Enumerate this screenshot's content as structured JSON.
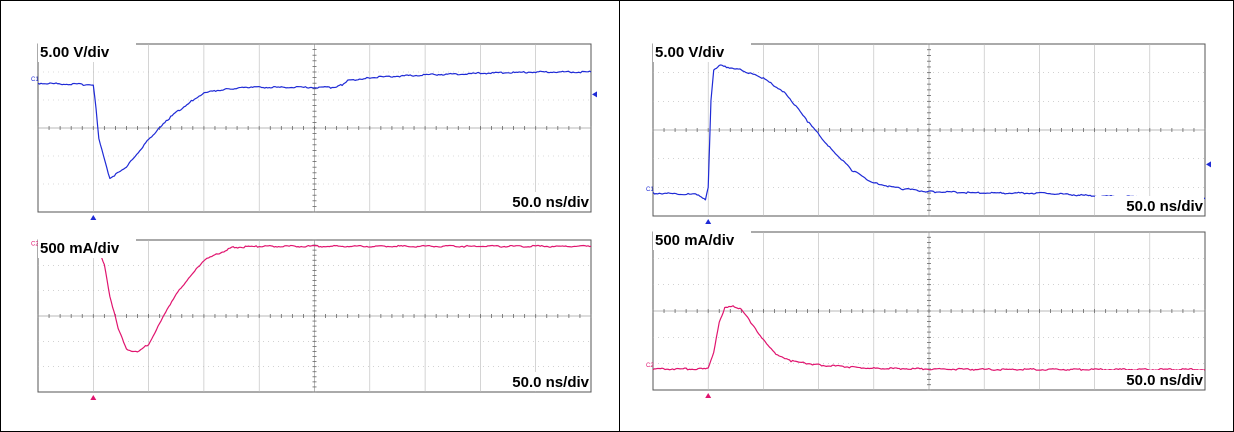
{
  "colors": {
    "voltage_trace": "#1f2bd6",
    "current_trace": "#e0156f",
    "grid": "#808080",
    "frame": "#000000",
    "background": "#ffffff"
  },
  "chart_data": [
    {
      "type": "line",
      "panel": "left",
      "plot": "voltage",
      "scale_label": "5.00 V/div",
      "time_label": "50.0 ns/div",
      "channel_marker": "C1",
      "grid": true,
      "xlim": [
        0,
        10
      ],
      "ylim": [
        0,
        6
      ],
      "x_units": "div",
      "y_units": "div",
      "series": [
        {
          "color": "#1f2bd6",
          "x": [
            0,
            0.9,
            1.0,
            1.05,
            1.1,
            1.3,
            1.6,
            2.0,
            2.4,
            2.8,
            3.0,
            3.4,
            3.8,
            4.4,
            5.0,
            5.4,
            5.5,
            5.6,
            6.0,
            7.0,
            8.0,
            9.0,
            10.0
          ],
          "y": [
            4.6,
            4.55,
            4.5,
            3.7,
            2.6,
            1.2,
            1.6,
            2.6,
            3.4,
            4.0,
            4.25,
            4.4,
            4.45,
            4.45,
            4.45,
            4.45,
            4.55,
            4.7,
            4.8,
            4.9,
            4.95,
            5.0,
            5.0
          ]
        }
      ]
    },
    {
      "type": "line",
      "panel": "left",
      "plot": "current",
      "scale_label": "500 mA/div",
      "time_label": "50.0 ns/div",
      "channel_marker": "C2",
      "grid": true,
      "xlim": [
        0,
        10
      ],
      "ylim": [
        0,
        6
      ],
      "x_units": "div",
      "y_units": "div",
      "series": [
        {
          "color": "#e0156f",
          "x": [
            0,
            1.0,
            1.1,
            1.2,
            1.3,
            1.45,
            1.6,
            1.8,
            2.0,
            2.2,
            2.5,
            3.0,
            3.5,
            4.0,
            5.0,
            6.0,
            7.0,
            8.0,
            9.0,
            10.0
          ],
          "y": [
            5.7,
            5.7,
            5.6,
            5.0,
            3.8,
            2.5,
            1.7,
            1.55,
            1.9,
            2.7,
            3.9,
            5.2,
            5.7,
            5.75,
            5.75,
            5.75,
            5.75,
            5.75,
            5.75,
            5.75
          ]
        }
      ]
    },
    {
      "type": "line",
      "panel": "right",
      "plot": "voltage",
      "scale_label": "5.00 V/div",
      "time_label": "50.0 ns/div",
      "channel_marker": "C1",
      "grid": true,
      "xlim": [
        0,
        10
      ],
      "ylim": [
        0,
        6
      ],
      "x_units": "div",
      "y_units": "div",
      "series": [
        {
          "color": "#1f2bd6",
          "x": [
            0,
            0.8,
            0.95,
            1.0,
            1.05,
            1.1,
            1.2,
            1.6,
            2.0,
            2.4,
            2.8,
            3.2,
            3.6,
            4.0,
            4.5,
            5.0,
            6.0,
            7.0,
            8.0,
            9.0,
            10.0
          ],
          "y": [
            0.8,
            0.75,
            0.55,
            1.0,
            4.0,
            5.1,
            5.25,
            5.1,
            4.8,
            4.3,
            3.3,
            2.4,
            1.6,
            1.15,
            0.95,
            0.85,
            0.8,
            0.8,
            0.7,
            0.65,
            0.6
          ]
        }
      ]
    },
    {
      "type": "line",
      "panel": "right",
      "plot": "current",
      "scale_label": "500 mA/div",
      "time_label": "50.0 ns/div",
      "channel_marker": "C2",
      "grid": true,
      "xlim": [
        0,
        10
      ],
      "ylim": [
        0,
        6
      ],
      "x_units": "div",
      "y_units": "div",
      "series": [
        {
          "color": "#e0156f",
          "x": [
            0,
            0.9,
            1.0,
            1.1,
            1.2,
            1.3,
            1.45,
            1.6,
            1.8,
            2.0,
            2.2,
            2.5,
            3.0,
            3.5,
            4.0,
            5.0,
            6.0,
            7.0,
            8.0,
            9.0,
            10.0
          ],
          "y": [
            0.8,
            0.8,
            0.85,
            1.4,
            2.6,
            3.1,
            3.2,
            3.05,
            2.5,
            1.9,
            1.4,
            1.1,
            0.95,
            0.88,
            0.82,
            0.8,
            0.78,
            0.78,
            0.78,
            0.78,
            0.78
          ]
        }
      ]
    }
  ]
}
